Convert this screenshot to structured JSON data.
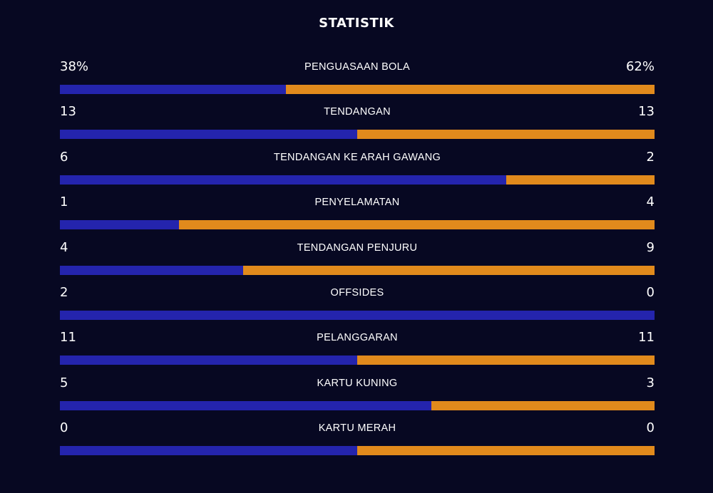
{
  "title": "STATISTIK",
  "colors": {
    "background": "#070822",
    "home": "#2424ad",
    "away": "#e18a1c"
  },
  "stats": [
    {
      "label": "PENGUASAAN BOLA",
      "home": "38%",
      "away": "62%",
      "home_share": 0.38
    },
    {
      "label": "TENDANGAN",
      "home": "13",
      "away": "13",
      "home_share": 0.5
    },
    {
      "label": "TENDANGAN KE ARAH GAWANG",
      "home": "6",
      "away": "2",
      "home_share": 0.75
    },
    {
      "label": "PENYELAMATAN",
      "home": "1",
      "away": "4",
      "home_share": 0.2
    },
    {
      "label": "TENDANGAN PENJURU",
      "home": "4",
      "away": "9",
      "home_share": 0.308
    },
    {
      "label": "OFFSIDES",
      "home": "2",
      "away": "0",
      "home_share": 1.0
    },
    {
      "label": "PELANGGARAN",
      "home": "11",
      "away": "11",
      "home_share": 0.5
    },
    {
      "label": "KARTU KUNING",
      "home": "5",
      "away": "3",
      "home_share": 0.625
    },
    {
      "label": "KARTU MERAH",
      "home": "0",
      "away": "0",
      "home_share": 0.5
    }
  ]
}
